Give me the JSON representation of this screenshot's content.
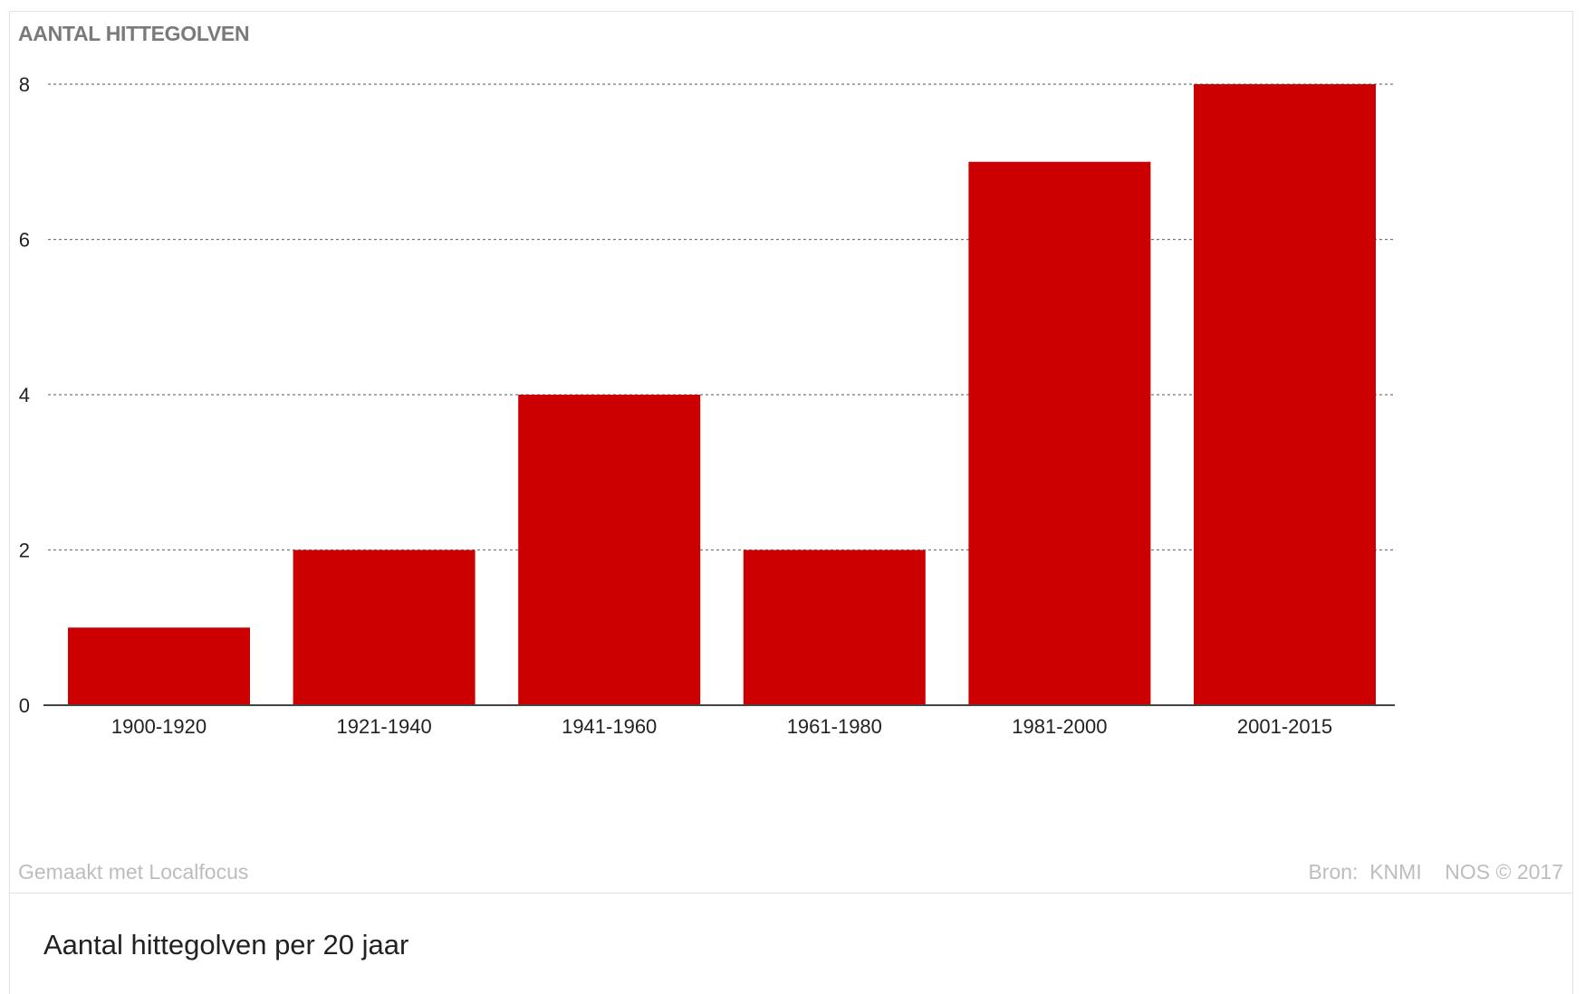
{
  "header": {
    "title": "AANTAL HITTEGOLVEN"
  },
  "chart_data": {
    "type": "bar",
    "title": "AANTAL HITTEGOLVEN",
    "xlabel": "",
    "ylabel": "",
    "categories": [
      "1900-1920",
      "1921-1940",
      "1941-1960",
      "1961-1980",
      "1981-2000",
      "2001-2015"
    ],
    "values": [
      1,
      2,
      4,
      2,
      7,
      8
    ],
    "ylim": [
      0,
      8
    ],
    "yticks": [
      0,
      2,
      4,
      6,
      8
    ],
    "grid": true,
    "bar_color": "#cc0000"
  },
  "footer": {
    "credit": "Gemaakt met Localfocus",
    "source_label": "Bron:",
    "source_name": "KNMI",
    "copyright": "NOS © 2017"
  },
  "caption": "Aantal hittegolven per 20 jaar"
}
